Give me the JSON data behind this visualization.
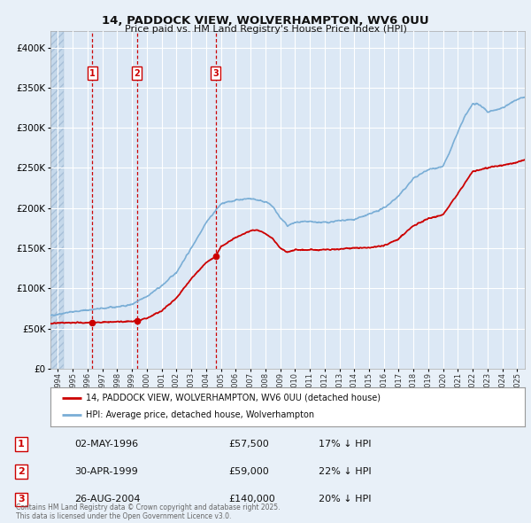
{
  "title_line1": "14, PADDOCK VIEW, WOLVERHAMPTON, WV6 0UU",
  "title_line2": "Price paid vs. HM Land Registry's House Price Index (HPI)",
  "legend_label_red": "14, PADDOCK VIEW, WOLVERHAMPTON, WV6 0UU (detached house)",
  "legend_label_blue": "HPI: Average price, detached house, Wolverhampton",
  "transactions": [
    {
      "num": 1,
      "date": "02-MAY-1996",
      "price": 57500,
      "year": 1996.33,
      "hpi_pct": "17% ↓ HPI"
    },
    {
      "num": 2,
      "date": "30-APR-1999",
      "price": 59000,
      "year": 1999.33,
      "hpi_pct": "22% ↓ HPI"
    },
    {
      "num": 3,
      "date": "26-AUG-2004",
      "price": 140000,
      "year": 2004.65,
      "hpi_pct": "20% ↓ HPI"
    }
  ],
  "footer": "Contains HM Land Registry data © Crown copyright and database right 2025.\nThis data is licensed under the Open Government Licence v3.0.",
  "bg_color": "#e8f0f8",
  "plot_bg": "#dce8f5",
  "red_color": "#cc0000",
  "blue_color": "#7aaed6",
  "grid_color": "#ffffff",
  "vline_color": "#cc0000",
  "ylim_max": 420000,
  "xlim_min": 1993.5,
  "xlim_max": 2025.5,
  "hpi_waypoints_x": [
    1993.5,
    1994,
    1995,
    1996,
    1997,
    1998,
    1999,
    2000,
    2001,
    2002,
    2003,
    2004,
    2005,
    2006,
    2007,
    2008,
    2008.5,
    2009,
    2009.5,
    2010,
    2011,
    2012,
    2013,
    2014,
    2015,
    2016,
    2017,
    2018,
    2019,
    2020,
    2020.5,
    2021,
    2021.5,
    2022,
    2022.5,
    2023,
    2023.5,
    2024,
    2024.5,
    2025,
    2025.5
  ],
  "hpi_waypoints_y": [
    66000,
    68000,
    71000,
    73000,
    75000,
    77000,
    80000,
    90000,
    103000,
    120000,
    150000,
    182000,
    205000,
    210000,
    212000,
    208000,
    202000,
    188000,
    178000,
    182000,
    183000,
    182000,
    184000,
    186000,
    192000,
    200000,
    215000,
    237000,
    248000,
    252000,
    272000,
    295000,
    315000,
    330000,
    328000,
    320000,
    322000,
    325000,
    330000,
    335000,
    338000
  ],
  "red_waypoints_x": [
    1993.5,
    1994,
    1995,
    1996,
    1996.33,
    1997,
    1998,
    1999,
    1999.33,
    2000,
    2001,
    2002,
    2003,
    2004,
    2004.65,
    2005,
    2006,
    2007,
    2007.5,
    2008,
    2008.5,
    2009,
    2009.5,
    2010,
    2011,
    2012,
    2013,
    2014,
    2015,
    2016,
    2017,
    2018,
    2019,
    2020,
    2020.5,
    2021,
    2021.5,
    2022,
    2022.5,
    2023,
    2023.5,
    2024,
    2024.5,
    2025,
    2025.5
  ],
  "red_waypoints_y": [
    56000,
    57000,
    57200,
    57400,
    57500,
    57800,
    58500,
    58900,
    59000,
    63000,
    72000,
    88000,
    112000,
    132000,
    140000,
    152000,
    163000,
    172000,
    173000,
    168000,
    162000,
    150000,
    145000,
    148000,
    148000,
    148000,
    149000,
    150000,
    151000,
    153000,
    162000,
    178000,
    187000,
    192000,
    205000,
    218000,
    232000,
    246000,
    248000,
    250000,
    252000,
    253000,
    255000,
    257000,
    260000
  ]
}
